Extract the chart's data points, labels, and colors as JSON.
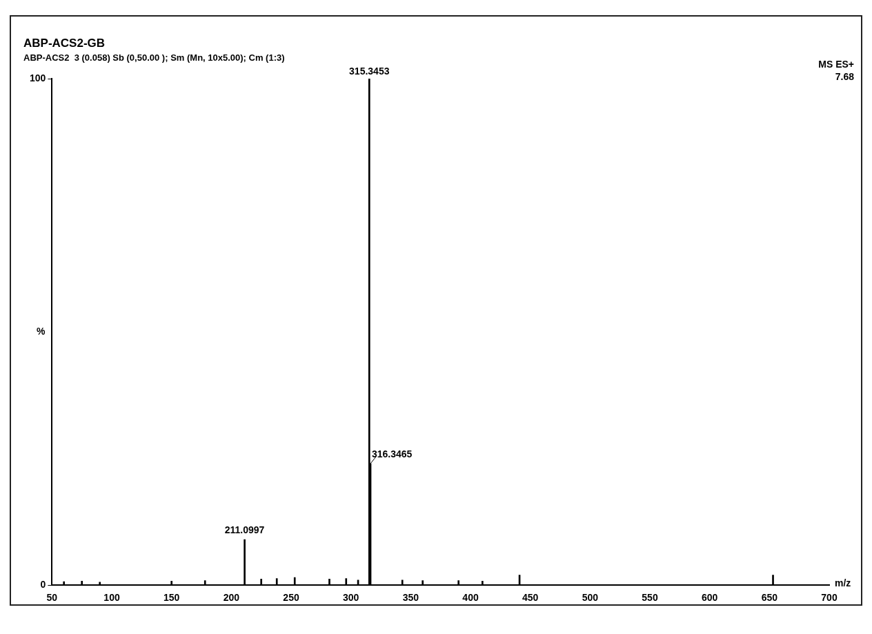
{
  "chart_data": {
    "type": "bar",
    "title": "ABP-ACS2-GB",
    "subtitle": "ABP-ACS2  3 (0.058) Sb (0,50.00 ); Sm (Mn, 10x5.00); Cm (1:3)",
    "xlabel": "m/z",
    "ylabel": "%",
    "x": [
      60,
      75,
      90,
      150,
      178,
      211.0997,
      225,
      238,
      253,
      282,
      296,
      306,
      315.3453,
      316.3465,
      343,
      360,
      390,
      410,
      441,
      653
    ],
    "values": [
      0.7,
      0.8,
      0.6,
      0.8,
      0.9,
      9,
      1.2,
      1.3,
      1.5,
      1.2,
      1.3,
      1,
      100,
      24,
      1,
      0.9,
      0.9,
      0.8,
      2,
      2
    ],
    "color": "#000000",
    "xlim": [
      50,
      700
    ],
    "xticks": [
      50,
      100,
      150,
      200,
      250,
      300,
      350,
      400,
      450,
      500,
      550,
      600,
      650,
      700
    ],
    "ylim": [
      0,
      100
    ],
    "yticks": [
      0,
      100
    ],
    "grid": false,
    "legend": false,
    "annotations": [
      {
        "text": "315.3453",
        "x": 315.3453,
        "y": 100
      },
      {
        "text": "316.3465",
        "x": 316.3465,
        "y": 24
      },
      {
        "text": "211.0997",
        "x": 211.0997,
        "y": 9
      },
      "MS ES+",
      "7.68"
    ]
  }
}
